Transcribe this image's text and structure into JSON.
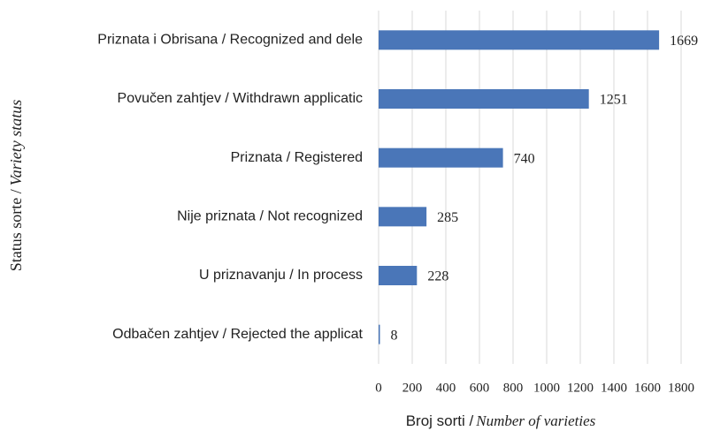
{
  "chart_data": {
    "type": "barh",
    "categories": [
      "Priznata i Obrisana / Recognized and dele",
      "Povučen zahtjev / Withdrawn applicatic",
      "Priznata / Registered",
      "Nije priznata / Not recognized",
      "U priznavanju / In process",
      "Odbačen zahtjev / Rejected the applicat"
    ],
    "values": [
      1669,
      1251,
      740,
      285,
      228,
      8
    ],
    "color": "#4a76b8",
    "xlim": [
      0,
      1800
    ],
    "xticks": [
      0,
      200,
      400,
      600,
      800,
      1000,
      1200,
      1400,
      1600,
      1800
    ],
    "grid": true,
    "xlabel": {
      "plain": "Broj sorti /",
      "italic": "Number of varieties"
    },
    "ylabel": {
      "plain": "Status sorte /",
      "italic": "Variety status"
    }
  }
}
